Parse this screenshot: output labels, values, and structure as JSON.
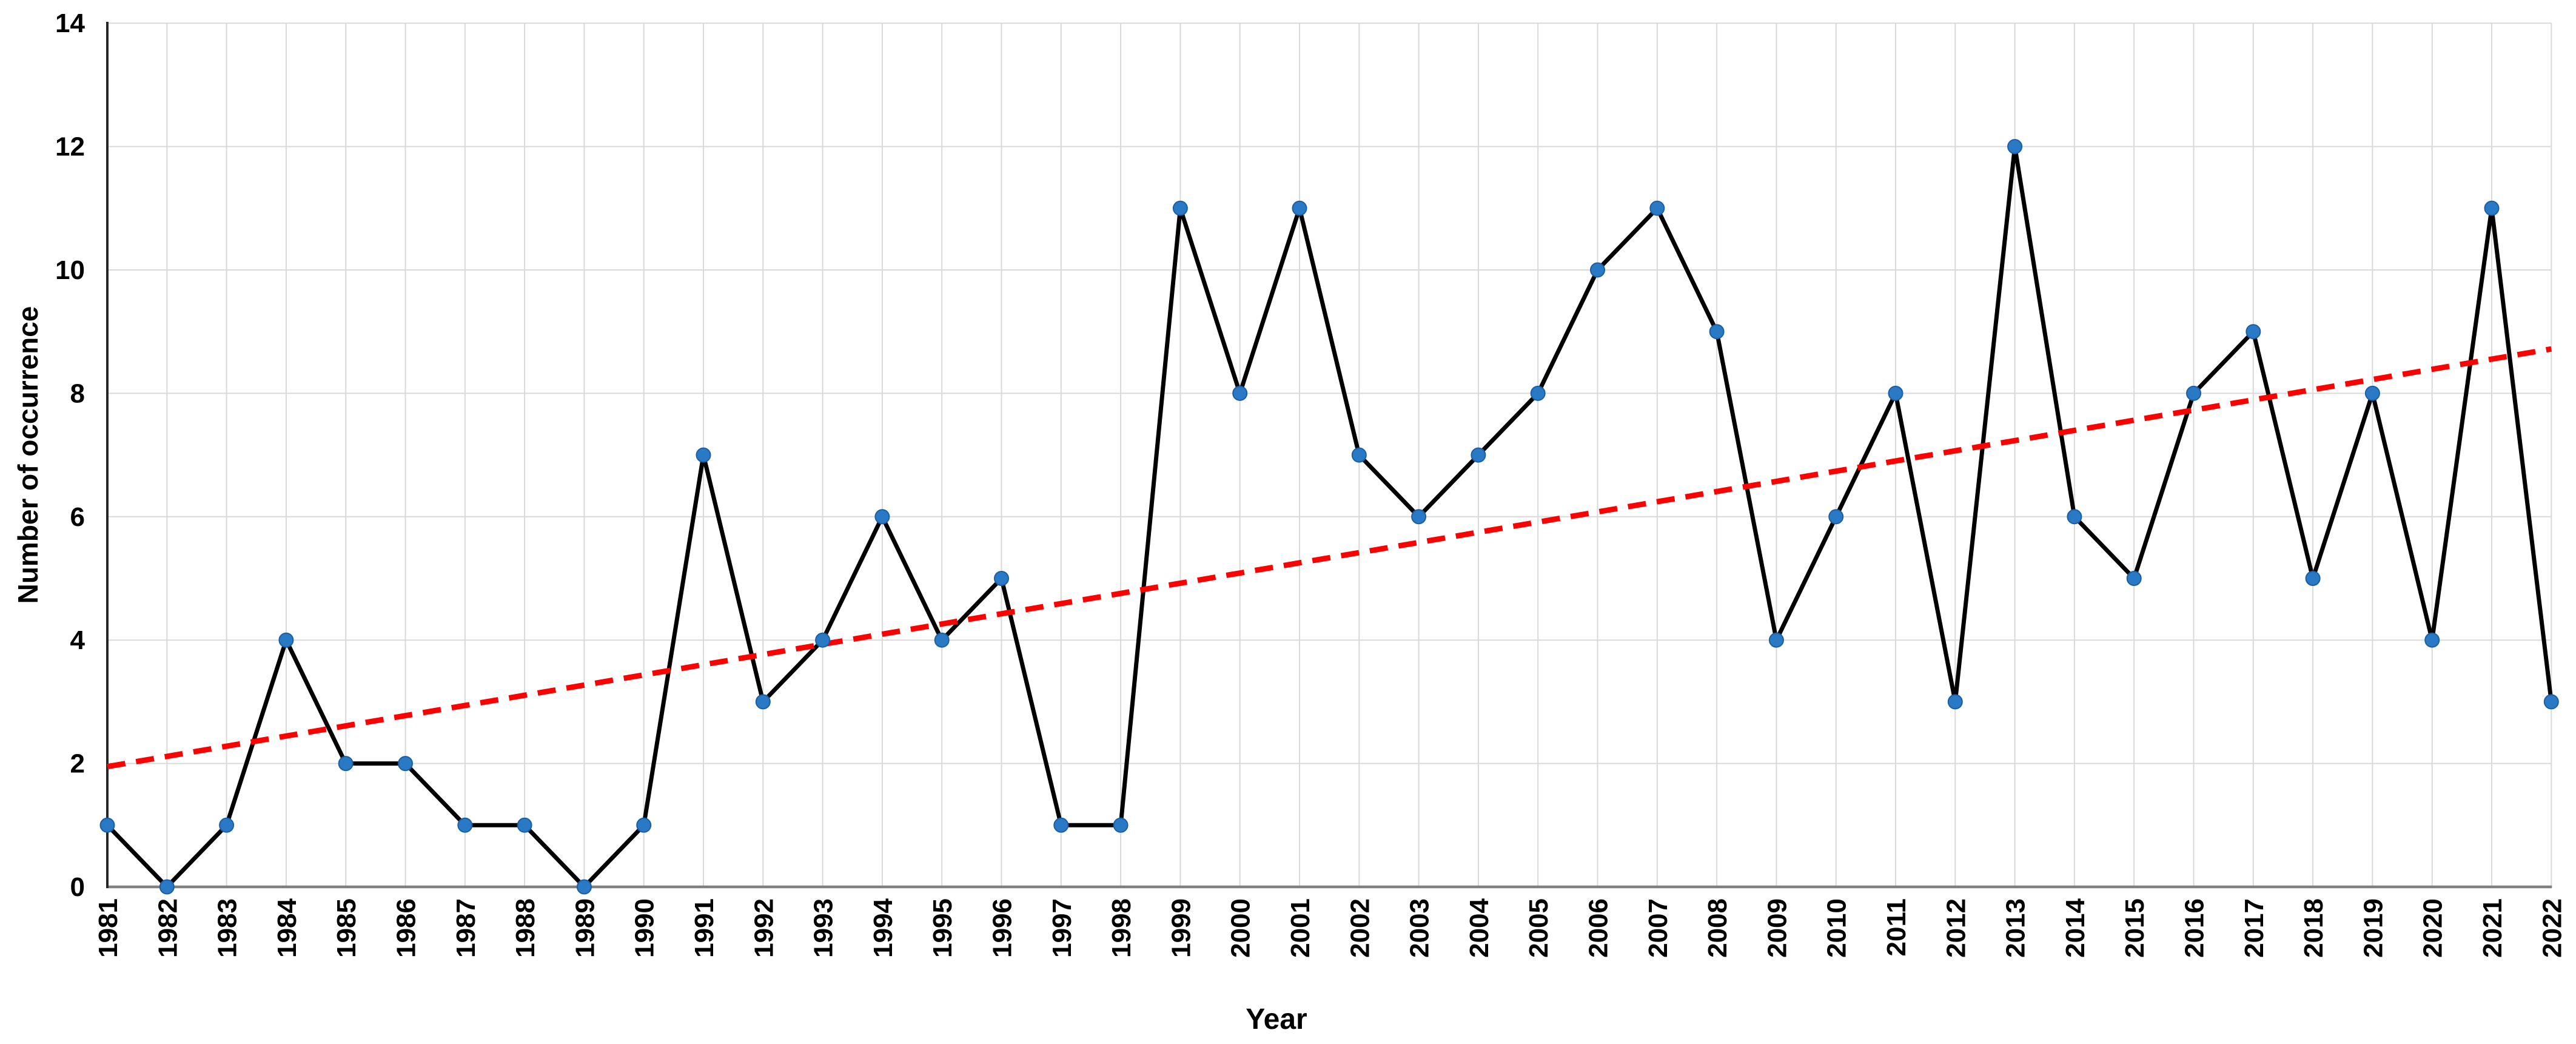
{
  "chart_data": {
    "type": "line",
    "title": "",
    "xlabel": "Year",
    "ylabel": "Number of occurrence",
    "categories": [
      "1981",
      "1982",
      "1983",
      "1984",
      "1985",
      "1986",
      "1987",
      "1988",
      "1989",
      "1990",
      "1991",
      "1992",
      "1993",
      "1994",
      "1995",
      "1996",
      "1997",
      "1998",
      "1999",
      "2000",
      "2001",
      "2002",
      "2003",
      "2004",
      "2005",
      "2006",
      "2007",
      "2008",
      "2009",
      "2010",
      "2011",
      "2012",
      "2013",
      "2014",
      "2015",
      "2016",
      "2017",
      "2018",
      "2019",
      "2020",
      "2021",
      "2022"
    ],
    "series": [
      {
        "name": "Number of occurrence",
        "values": [
          1,
          0,
          1,
          4,
          2,
          2,
          1,
          1,
          0,
          1,
          7,
          3,
          4,
          6,
          4,
          5,
          1,
          1,
          11,
          8,
          11,
          7,
          6,
          7,
          8,
          10,
          11,
          9,
          4,
          6,
          8,
          3,
          12,
          6,
          5,
          8,
          9,
          5,
          8,
          4,
          11,
          3
        ],
        "line_color": "#000000",
        "marker_color": "#2A79C4",
        "marker_edge_color": "#1A5FA6"
      }
    ],
    "trendline": {
      "type": "linear",
      "style": "dashed",
      "color": "#FF0000",
      "start_value": 1.95,
      "end_value": 8.72
    },
    "ylim": [
      0,
      14
    ],
    "ytick_step": 2,
    "ytick_labels": [
      "0",
      "2",
      "4",
      "6",
      "8",
      "10",
      "12",
      "14"
    ],
    "grid": true,
    "grid_color": "#D9D9D9",
    "y_axis_color": "#262626",
    "x_axis_color": "#808080",
    "background_color": "#FFFFFF",
    "legend": "none"
  }
}
